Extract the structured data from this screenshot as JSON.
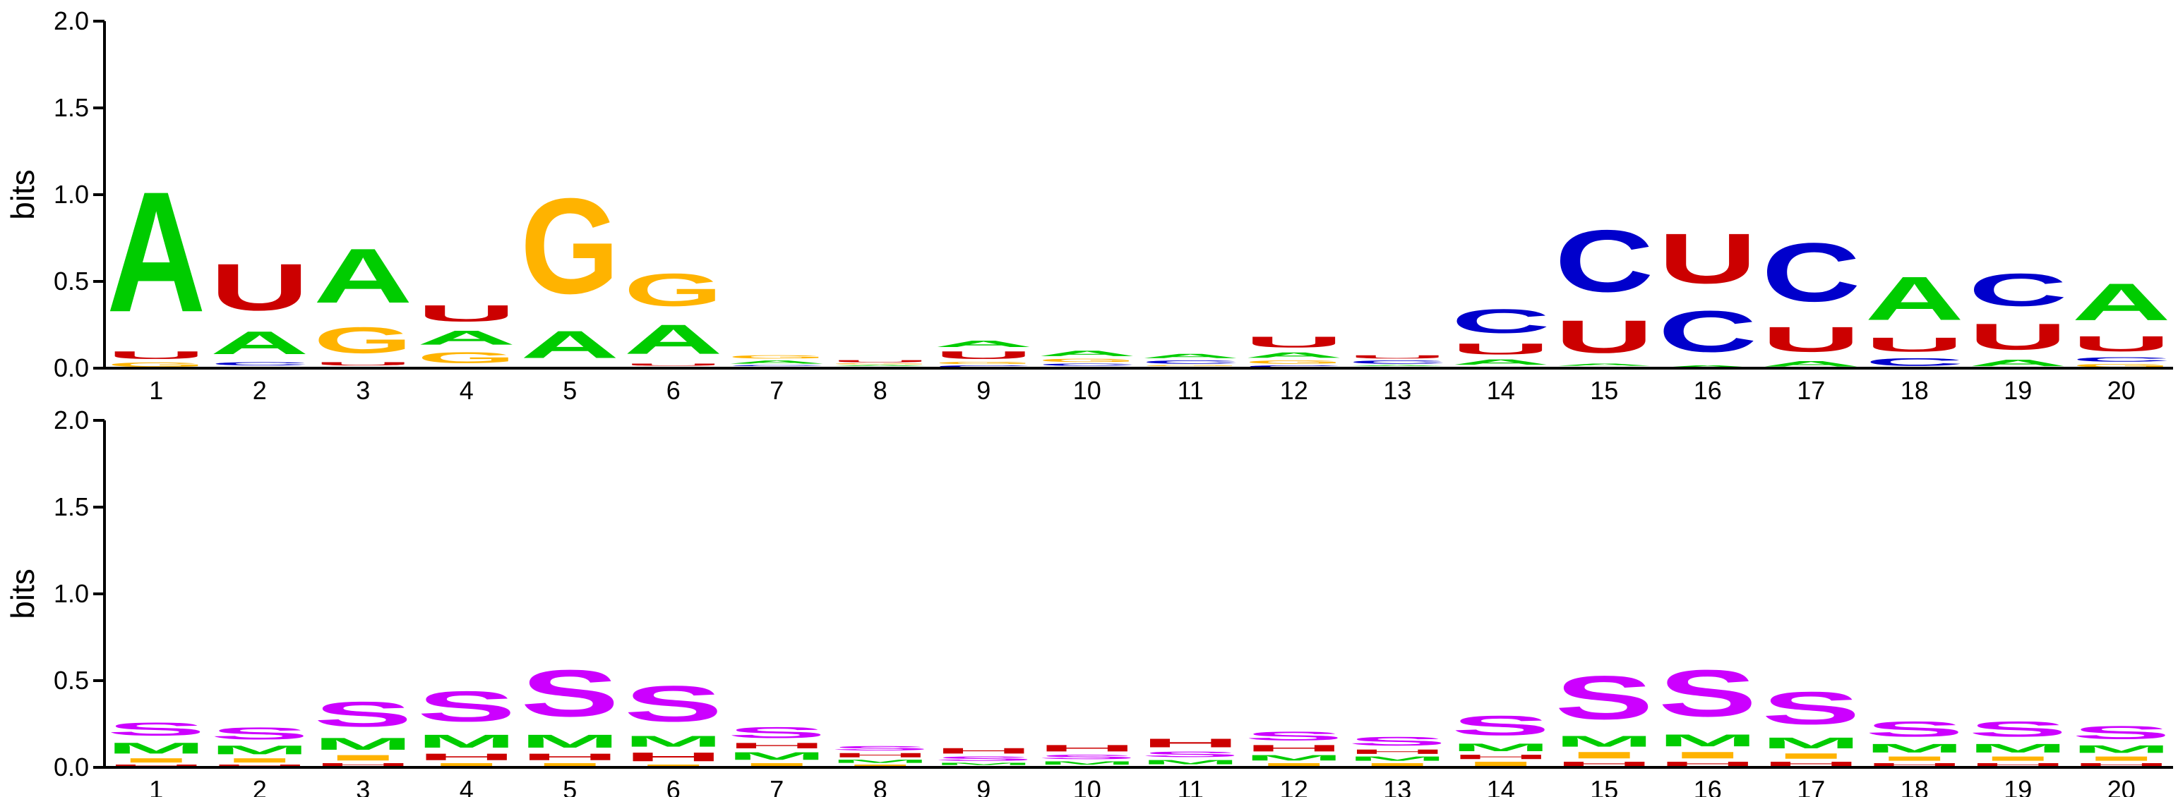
{
  "colors": {
    "A": "#00cc00",
    "C": "#0000cc",
    "G": "#ffb300",
    "U": "#cc0000",
    "S": "#cc00ff",
    "M": "#00cc00",
    "I": "#ffb300",
    "H": "#cc0000"
  },
  "chart_data": [
    {
      "type": "sequence-logo",
      "alphabet": [
        "A",
        "C",
        "G",
        "U"
      ],
      "ylabel": "bits",
      "ylim": [
        0,
        2.0
      ],
      "yticks": [
        "0.0",
        "0.5",
        "1.0",
        "1.5",
        "2.0"
      ],
      "positions": [
        "1",
        "2",
        "3",
        "4",
        "5",
        "6",
        "7",
        "8",
        "9",
        "10",
        "11",
        "12",
        "13",
        "14",
        "15",
        "16",
        "17",
        "18",
        "19",
        "20"
      ],
      "stacks": [
        [
          {
            "l": "G",
            "h": 0.04
          },
          {
            "l": "U",
            "h": 0.07
          },
          {
            "l": "A",
            "h": 1.11
          }
        ],
        [
          {
            "l": "G",
            "h": 0.01
          },
          {
            "l": "C",
            "h": 0.03
          },
          {
            "l": "A",
            "h": 0.21
          },
          {
            "l": "U",
            "h": 0.43
          }
        ],
        [
          {
            "l": "C",
            "h": 0.01
          },
          {
            "l": "U",
            "h": 0.03
          },
          {
            "l": "G",
            "h": 0.24
          },
          {
            "l": "A",
            "h": 0.5
          }
        ],
        [
          {
            "l": "C",
            "h": 0.01
          },
          {
            "l": "G",
            "h": 0.1
          },
          {
            "l": "A",
            "h": 0.13
          },
          {
            "l": "U",
            "h": 0.15
          }
        ],
        [
          {
            "l": "U",
            "h": 0.01
          },
          {
            "l": "A",
            "h": 0.25
          },
          {
            "l": "G",
            "h": 0.88
          }
        ],
        [
          {
            "l": "C",
            "h": 0.01
          },
          {
            "l": "U",
            "h": 0.02
          },
          {
            "l": "A",
            "h": 0.27
          },
          {
            "l": "G",
            "h": 0.3
          }
        ],
        [
          {
            "l": "U",
            "h": 0.01
          },
          {
            "l": "C",
            "h": 0.01
          },
          {
            "l": "A",
            "h": 0.03
          },
          {
            "l": "G",
            "h": 0.03
          }
        ],
        [
          {
            "l": "C",
            "h": 0.01
          },
          {
            "l": "A",
            "h": 0.01
          },
          {
            "l": "G",
            "h": 0.01
          },
          {
            "l": "U",
            "h": 0.02
          }
        ],
        [
          {
            "l": "C",
            "h": 0.02
          },
          {
            "l": "G",
            "h": 0.02
          },
          {
            "l": "U",
            "h": 0.07
          },
          {
            "l": "A",
            "h": 0.06
          }
        ],
        [
          {
            "l": "U",
            "h": 0.01
          },
          {
            "l": "C",
            "h": 0.02
          },
          {
            "l": "G",
            "h": 0.03
          },
          {
            "l": "A",
            "h": 0.05
          }
        ],
        [
          {
            "l": "U",
            "h": 0.01
          },
          {
            "l": "G",
            "h": 0.01
          },
          {
            "l": "C",
            "h": 0.03
          },
          {
            "l": "A",
            "h": 0.04
          }
        ],
        [
          {
            "l": "C",
            "h": 0.02
          },
          {
            "l": "G",
            "h": 0.03
          },
          {
            "l": "A",
            "h": 0.05
          },
          {
            "l": "U",
            "h": 0.1
          }
        ],
        [
          {
            "l": "G",
            "h": 0.01
          },
          {
            "l": "A",
            "h": 0.01
          },
          {
            "l": "C",
            "h": 0.03
          },
          {
            "l": "U",
            "h": 0.03
          }
        ],
        [
          {
            "l": "G",
            "h": 0.01
          },
          {
            "l": "A",
            "h": 0.05
          },
          {
            "l": "U",
            "h": 0.1
          },
          {
            "l": "C",
            "h": 0.22
          }
        ],
        [
          {
            "l": "G",
            "h": 0.01
          },
          {
            "l": "A",
            "h": 0.02
          },
          {
            "l": "U",
            "h": 0.3
          },
          {
            "l": "C",
            "h": 0.57
          }
        ],
        [
          {
            "l": "A",
            "h": 0.02
          },
          {
            "l": "C",
            "h": 0.38
          },
          {
            "l": "U",
            "h": 0.46
          }
        ],
        [
          {
            "l": "A",
            "h": 0.05
          },
          {
            "l": "U",
            "h": 0.23
          },
          {
            "l": "C",
            "h": 0.54
          }
        ],
        [
          {
            "l": "C",
            "h": 0.07
          },
          {
            "l": "U",
            "h": 0.13
          },
          {
            "l": "A",
            "h": 0.4
          }
        ],
        [
          {
            "l": "A",
            "h": 0.06
          },
          {
            "l": "U",
            "h": 0.24
          },
          {
            "l": "C",
            "h": 0.3
          }
        ],
        [
          {
            "l": "G",
            "h": 0.03
          },
          {
            "l": "C",
            "h": 0.04
          },
          {
            "l": "U",
            "h": 0.14
          },
          {
            "l": "A",
            "h": 0.34
          }
        ]
      ]
    },
    {
      "type": "sequence-logo",
      "alphabet": [
        "S",
        "M",
        "I",
        "H"
      ],
      "ylabel": "bits",
      "ylim": [
        0,
        2.0
      ],
      "yticks": [
        "0.0",
        "0.5",
        "1.0",
        "1.5",
        "2.0"
      ],
      "positions": [
        "1",
        "2",
        "3",
        "4",
        "5",
        "6",
        "7",
        "8",
        "9",
        "10",
        "11",
        "12",
        "13",
        "14",
        "15",
        "16",
        "17",
        "18",
        "19",
        "20"
      ],
      "stacks": [
        [
          {
            "l": "H",
            "h": 0.02
          },
          {
            "l": "I",
            "h": 0.04
          },
          {
            "l": "M",
            "h": 0.1
          },
          {
            "l": "S",
            "h": 0.12
          }
        ],
        [
          {
            "l": "H",
            "h": 0.02
          },
          {
            "l": "I",
            "h": 0.04
          },
          {
            "l": "M",
            "h": 0.08
          },
          {
            "l": "S",
            "h": 0.11
          }
        ],
        [
          {
            "l": "H",
            "h": 0.03
          },
          {
            "l": "I",
            "h": 0.05
          },
          {
            "l": "M",
            "h": 0.11
          },
          {
            "l": "S",
            "h": 0.23
          }
        ],
        [
          {
            "l": "I",
            "h": 0.03
          },
          {
            "l": "H",
            "h": 0.06
          },
          {
            "l": "M",
            "h": 0.12
          },
          {
            "l": "S",
            "h": 0.28
          }
        ],
        [
          {
            "l": "I",
            "h": 0.03
          },
          {
            "l": "H",
            "h": 0.06
          },
          {
            "l": "M",
            "h": 0.12
          },
          {
            "l": "S",
            "h": 0.43
          }
        ],
        [
          {
            "l": "I",
            "h": 0.02
          },
          {
            "l": "H",
            "h": 0.08
          },
          {
            "l": "M",
            "h": 0.1
          },
          {
            "l": "S",
            "h": 0.33
          }
        ],
        [
          {
            "l": "I",
            "h": 0.03
          },
          {
            "l": "M",
            "h": 0.07
          },
          {
            "l": "H",
            "h": 0.05
          },
          {
            "l": "S",
            "h": 0.1
          }
        ],
        [
          {
            "l": "I",
            "h": 0.02
          },
          {
            "l": "M",
            "h": 0.03
          },
          {
            "l": "H",
            "h": 0.04
          },
          {
            "l": "S",
            "h": 0.04
          }
        ],
        [
          {
            "l": "I",
            "h": 0.01
          },
          {
            "l": "M",
            "h": 0.02
          },
          {
            "l": "S",
            "h": 0.04
          },
          {
            "l": "H",
            "h": 0.05
          }
        ],
        [
          {
            "l": "I",
            "h": 0.01
          },
          {
            "l": "M",
            "h": 0.03
          },
          {
            "l": "S",
            "h": 0.04
          },
          {
            "l": "H",
            "h": 0.06
          }
        ],
        [
          {
            "l": "I",
            "h": 0.01
          },
          {
            "l": "M",
            "h": 0.04
          },
          {
            "l": "S",
            "h": 0.05
          },
          {
            "l": "H",
            "h": 0.08
          }
        ],
        [
          {
            "l": "I",
            "h": 0.03
          },
          {
            "l": "M",
            "h": 0.05
          },
          {
            "l": "H",
            "h": 0.06
          },
          {
            "l": "S",
            "h": 0.08
          }
        ],
        [
          {
            "l": "I",
            "h": 0.03
          },
          {
            "l": "M",
            "h": 0.04
          },
          {
            "l": "H",
            "h": 0.04
          },
          {
            "l": "S",
            "h": 0.08
          }
        ],
        [
          {
            "l": "I",
            "h": 0.04
          },
          {
            "l": "H",
            "h": 0.04
          },
          {
            "l": "M",
            "h": 0.07
          },
          {
            "l": "S",
            "h": 0.18
          }
        ],
        [
          {
            "l": "H",
            "h": 0.04
          },
          {
            "l": "I",
            "h": 0.06
          },
          {
            "l": "M",
            "h": 0.1
          },
          {
            "l": "S",
            "h": 0.4
          }
        ],
        [
          {
            "l": "H",
            "h": 0.04
          },
          {
            "l": "I",
            "h": 0.06
          },
          {
            "l": "M",
            "h": 0.11
          },
          {
            "l": "S",
            "h": 0.43
          }
        ],
        [
          {
            "l": "H",
            "h": 0.04
          },
          {
            "l": "I",
            "h": 0.05
          },
          {
            "l": "M",
            "h": 0.1
          },
          {
            "l": "S",
            "h": 0.3
          }
        ],
        [
          {
            "l": "H",
            "h": 0.03
          },
          {
            "l": "I",
            "h": 0.04
          },
          {
            "l": "M",
            "h": 0.08
          },
          {
            "l": "S",
            "h": 0.14
          }
        ],
        [
          {
            "l": "H",
            "h": 0.03
          },
          {
            "l": "I",
            "h": 0.04
          },
          {
            "l": "M",
            "h": 0.08
          },
          {
            "l": "S",
            "h": 0.14
          }
        ],
        [
          {
            "l": "H",
            "h": 0.03
          },
          {
            "l": "I",
            "h": 0.04
          },
          {
            "l": "M",
            "h": 0.07
          },
          {
            "l": "S",
            "h": 0.12
          }
        ]
      ]
    }
  ]
}
